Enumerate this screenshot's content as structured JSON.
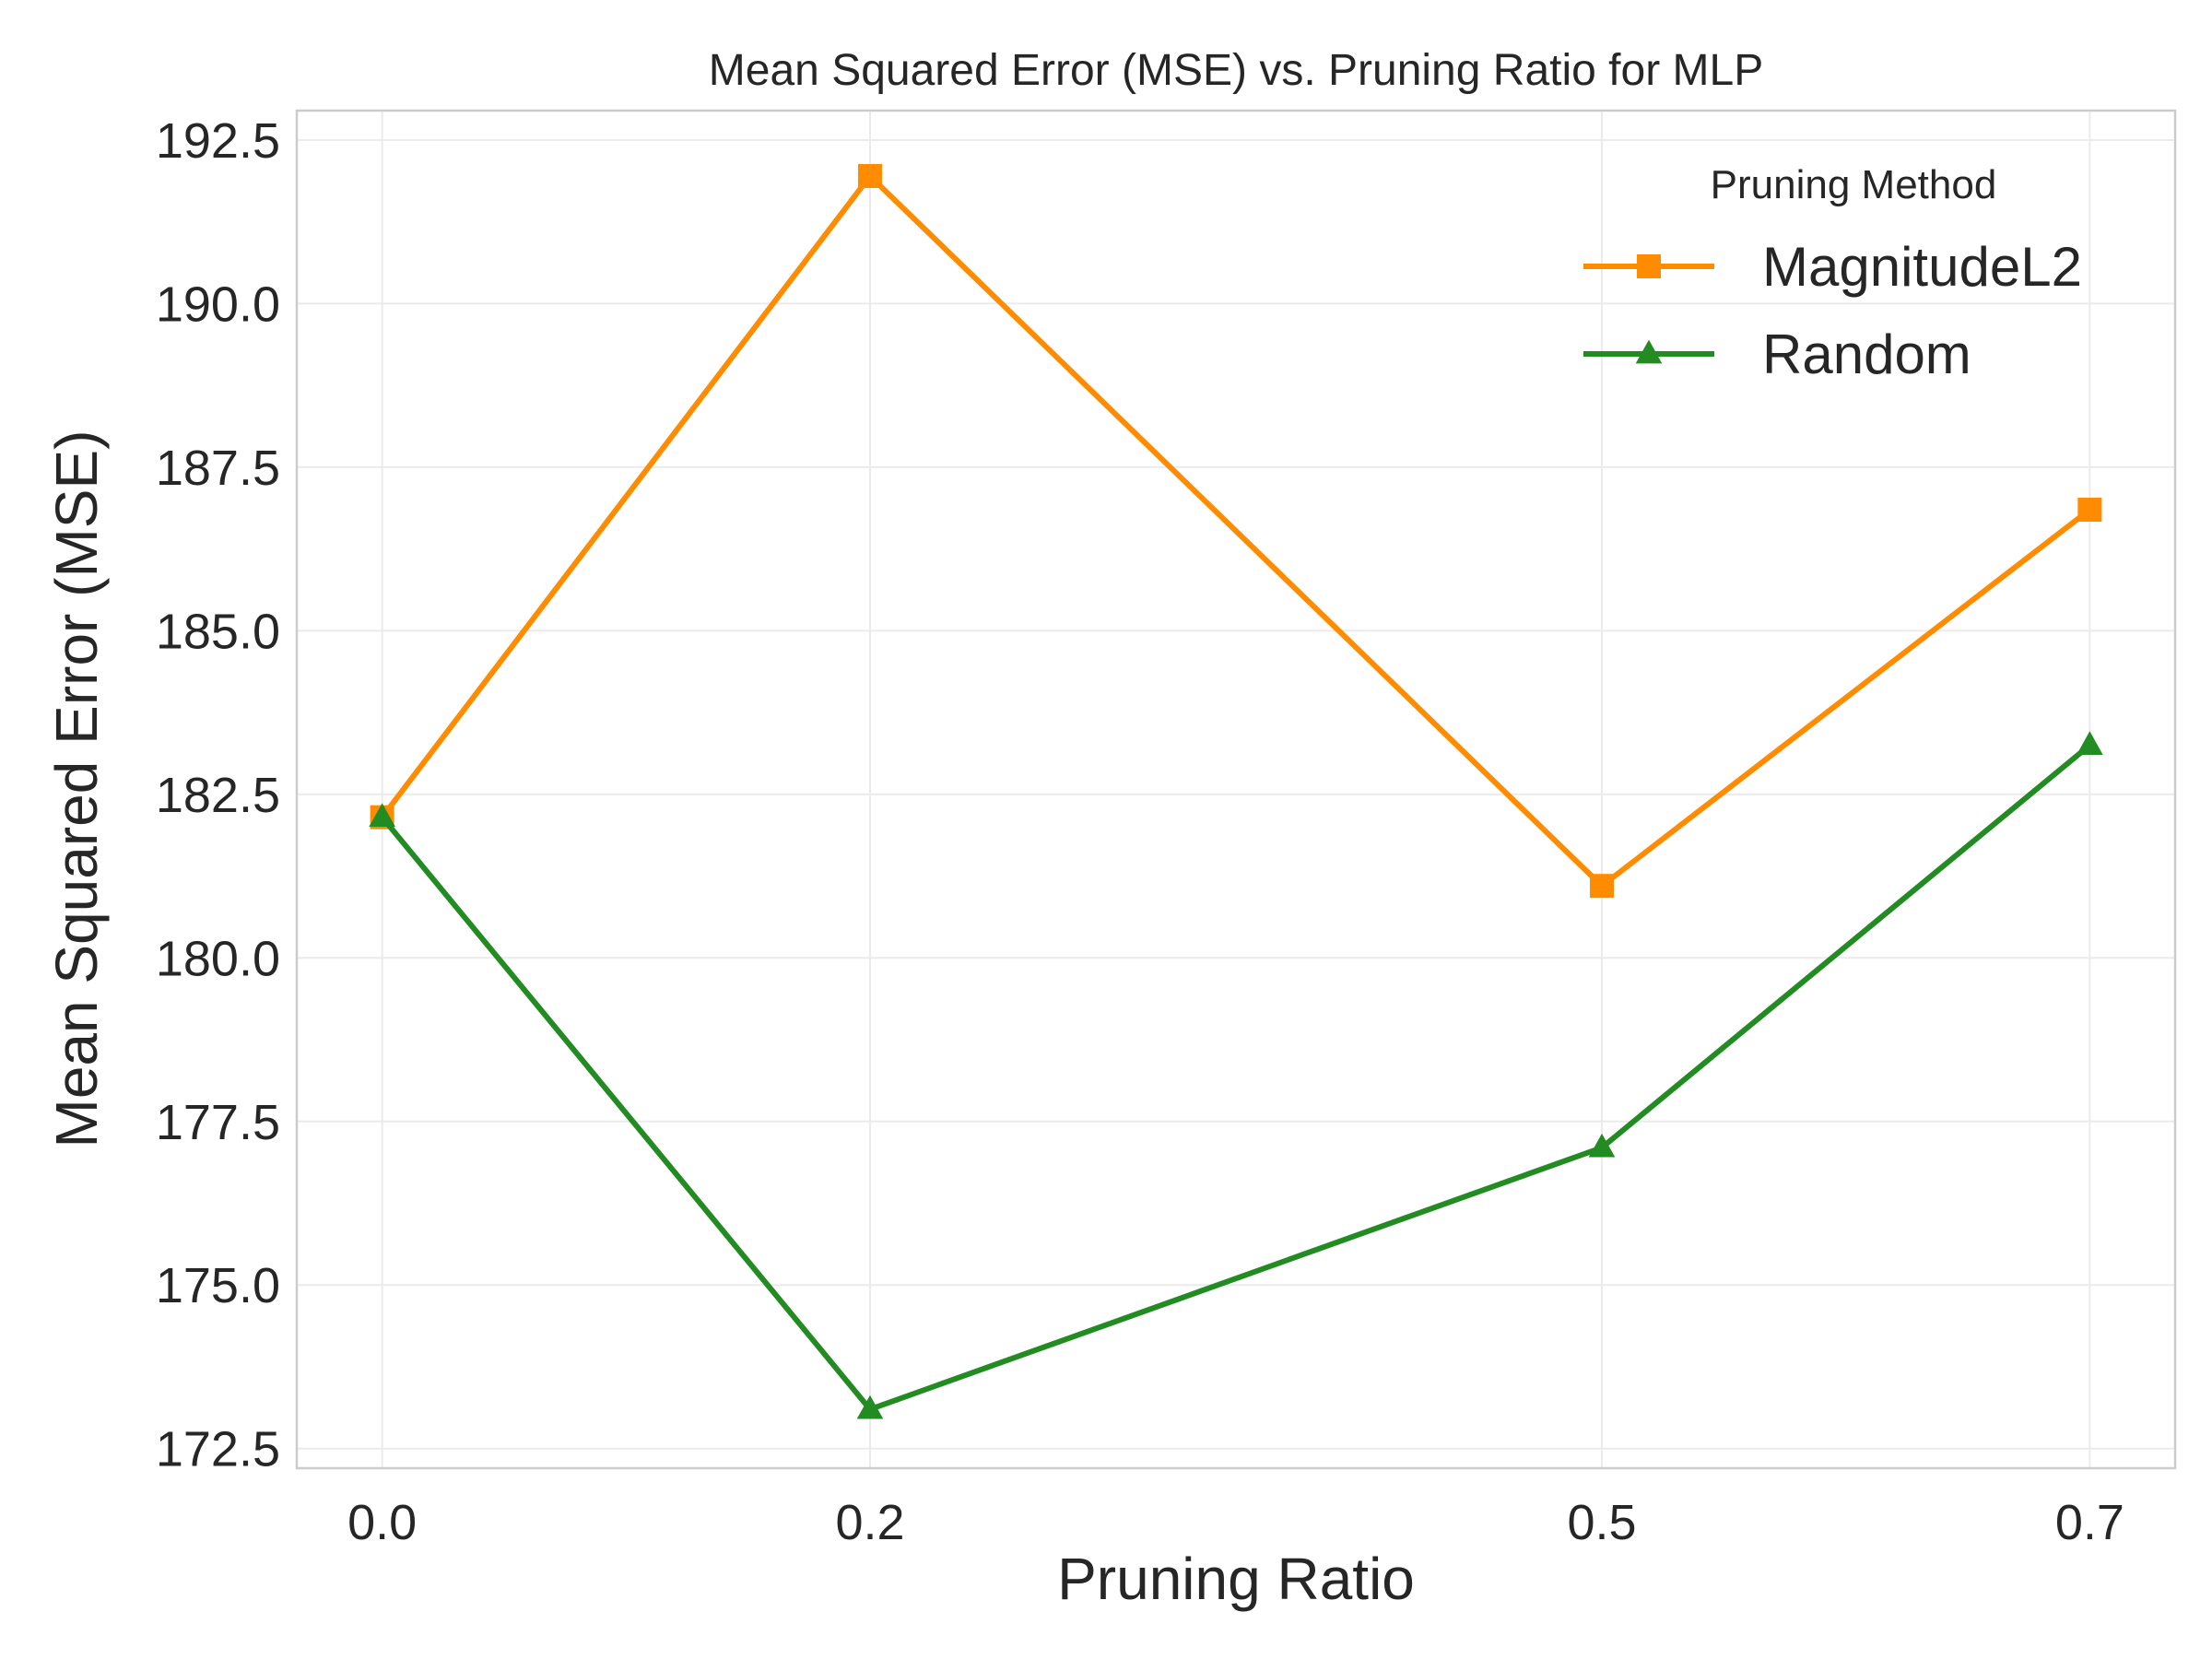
{
  "chart_data": {
    "type": "line",
    "title": "Mean Squared Error (MSE) vs. Pruning Ratio for MLP",
    "xlabel": "Pruning Ratio",
    "ylabel": "Mean Squared Error (MSE)",
    "x": [
      0.0,
      0.2,
      0.5,
      0.7
    ],
    "x_tick_labels": [
      "0.0",
      "0.2",
      "0.5",
      "0.7"
    ],
    "xlim": [
      -0.035,
      0.735
    ],
    "ylim": [
      172.2,
      192.95
    ],
    "y_ticks": [
      172.5,
      175.0,
      177.5,
      180.0,
      182.5,
      185.0,
      187.5,
      190.0,
      192.5
    ],
    "y_tick_labels": [
      "172.5",
      "175.0",
      "177.5",
      "180.0",
      "182.5",
      "185.0",
      "187.5",
      "190.0",
      "192.5"
    ],
    "grid": true,
    "legend": {
      "title": "Pruning Method",
      "placement": "top-right"
    },
    "series": [
      {
        "name": "MagnitudeL2",
        "values": [
          182.15,
          191.95,
          181.1,
          186.85
        ],
        "color": "#ff8c00",
        "marker": "square"
      },
      {
        "name": "Random",
        "values": [
          182.15,
          173.1,
          177.1,
          183.25
        ],
        "color": "#228b22",
        "marker": "triangle"
      }
    ]
  }
}
